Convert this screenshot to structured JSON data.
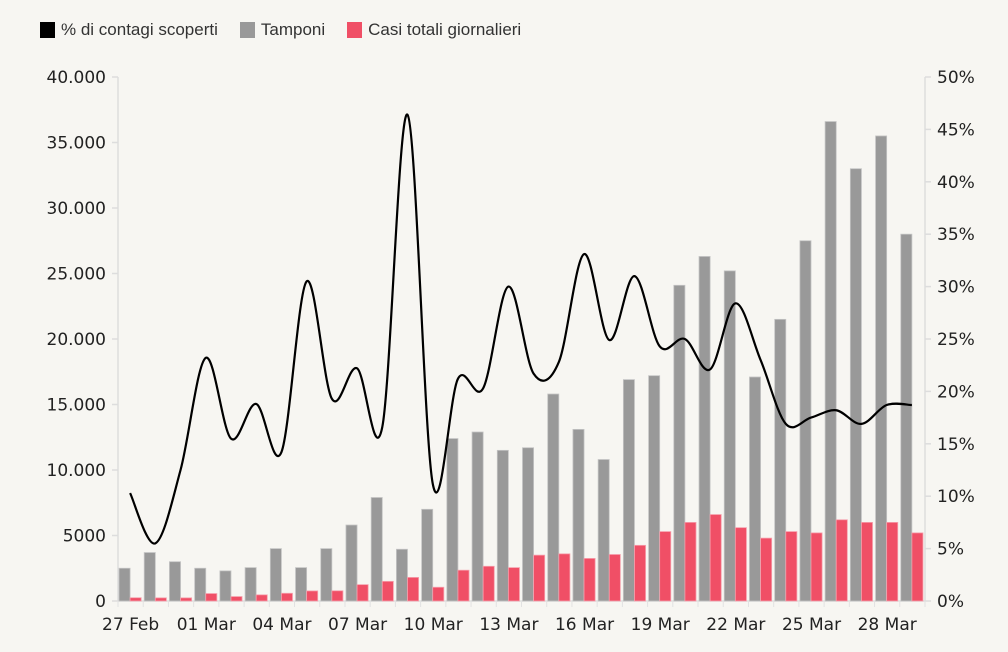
{
  "chart_data": {
    "type": "bar",
    "title": "",
    "legend": {
      "placement": "top-left",
      "entries": [
        {
          "label": "% di contagi scoperti",
          "color": "#000000",
          "kind": "line"
        },
        {
          "label": "Tamponi",
          "color": "#999999",
          "kind": "bar"
        },
        {
          "label": "Casi totali giornalieri",
          "color": "#f04f66",
          "kind": "bar"
        }
      ]
    },
    "categories": [
      "27 Feb",
      "28 Feb",
      "29 Feb",
      "01 Mar",
      "02 Mar",
      "03 Mar",
      "04 Mar",
      "05 Mar",
      "06 Mar",
      "07 Mar",
      "08 Mar",
      "09 Mar",
      "10 Mar",
      "11 Mar",
      "12 Mar",
      "13 Mar",
      "14 Mar",
      "15 Mar",
      "16 Mar",
      "17 Mar",
      "18 Mar",
      "19 Mar",
      "20 Mar",
      "21 Mar",
      "22 Mar",
      "23 Mar",
      "24 Mar",
      "25 Mar",
      "26 Mar",
      "27 Mar",
      "28 Mar",
      "29 Mar"
    ],
    "x_tick_labels": [
      "27 Feb",
      "01 Mar",
      "04 Mar",
      "07 Mar",
      "10 Mar",
      "13 Mar",
      "16 Mar",
      "19 Mar",
      "22 Mar",
      "25 Mar",
      "28 Mar"
    ],
    "x_tick_indices": [
      0,
      3,
      6,
      9,
      12,
      15,
      18,
      21,
      24,
      27,
      30
    ],
    "series": [
      {
        "name": "Tamponi",
        "axis": "left",
        "type": "bar",
        "color": "#999999",
        "values": [
          2500,
          3700,
          3000,
          2500,
          2300,
          2550,
          4000,
          2550,
          4000,
          5800,
          7900,
          3950,
          7000,
          12400,
          12900,
          11500,
          11700,
          15800,
          13100,
          10800,
          16900,
          17200,
          24100,
          26300,
          25200,
          17100,
          21500,
          27500,
          36600,
          33000,
          35500,
          28000
        ]
      },
      {
        "name": "Casi totali giornalieri",
        "axis": "left",
        "type": "bar",
        "color": "#f04f66",
        "values": [
          250,
          240,
          240,
          570,
          340,
          470,
          590,
          770,
          780,
          1250,
          1500,
          1800,
          1050,
          2350,
          2650,
          2550,
          3500,
          3600,
          3250,
          3550,
          4250,
          5300,
          6000,
          6600,
          5600,
          4800,
          5300,
          5200,
          6200,
          6000,
          6000,
          5200
        ]
      },
      {
        "name": "% di contagi scoperti",
        "axis": "right",
        "type": "line",
        "color": "#000000",
        "values": [
          10.3,
          5.5,
          12.5,
          23.2,
          15.5,
          18.8,
          14.2,
          30.5,
          19.3,
          22.2,
          16.6,
          46.4,
          11.2,
          21.2,
          20.3,
          30.0,
          21.7,
          22.8,
          33.1,
          24.9,
          31.0,
          24.3,
          25.0,
          22.1,
          28.4,
          23.0,
          16.9,
          17.5,
          18.2,
          16.9,
          18.7,
          18.7
        ]
      }
    ],
    "y_left": {
      "label": "",
      "min": 0,
      "max": 40000,
      "ticks": [
        "0",
        "5000",
        "10.000",
        "15.000",
        "20.000",
        "25.000",
        "30.000",
        "35.000",
        "40.000"
      ],
      "tick_values": [
        0,
        5000,
        10000,
        15000,
        20000,
        25000,
        30000,
        35000,
        40000
      ]
    },
    "y_right": {
      "label": "",
      "min": 0,
      "max": 50,
      "ticks": [
        "0%",
        "5%",
        "10%",
        "15%",
        "20%",
        "25%",
        "30%",
        "35%",
        "40%",
        "45%",
        "50%"
      ],
      "tick_values": [
        0,
        5,
        10,
        15,
        20,
        25,
        30,
        35,
        40,
        45,
        50
      ]
    },
    "grid": false
  }
}
